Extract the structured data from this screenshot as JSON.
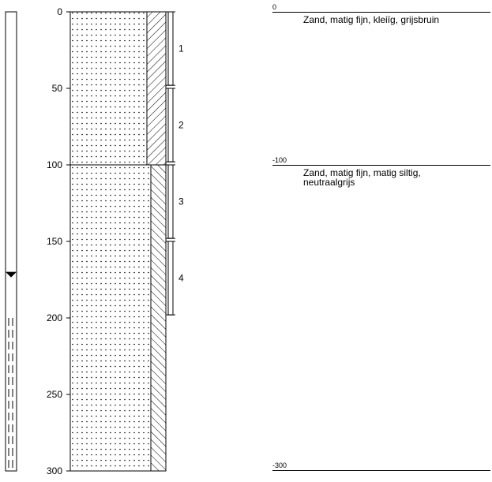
{
  "depth_axis": {
    "ticks": [
      "0",
      "50",
      "100",
      "150",
      "200",
      "250",
      "300"
    ],
    "min": 0,
    "max": 300
  },
  "groundwater_level_cm": 172,
  "well_screen": {
    "top_cm": 200,
    "bottom_cm": 300
  },
  "sample_tubes": [
    {
      "label": "1",
      "top_cm": 0,
      "bottom_cm": 48
    },
    {
      "label": "2",
      "top_cm": 50,
      "bottom_cm": 98
    },
    {
      "label": "3",
      "top_cm": 100,
      "bottom_cm": 148
    },
    {
      "label": "4",
      "top_cm": 150,
      "bottom_cm": 198
    }
  ],
  "layers": [
    {
      "top_cm": 0,
      "bottom_cm": 100,
      "level_label": "0",
      "description": [
        "Zand, matig fijn, kleiïg, grijsbruin"
      ],
      "texture": "sand-dotted",
      "side_hatch": "forward-slash"
    },
    {
      "top_cm": 100,
      "bottom_cm": 300,
      "level_label": "-100",
      "description": [
        "Zand, matig fijn, matig siltig,",
        "neutraalgrijs"
      ],
      "texture": "sand-dotted",
      "side_hatch": "back-slash"
    }
  ],
  "bottom_level_label": "-300"
}
